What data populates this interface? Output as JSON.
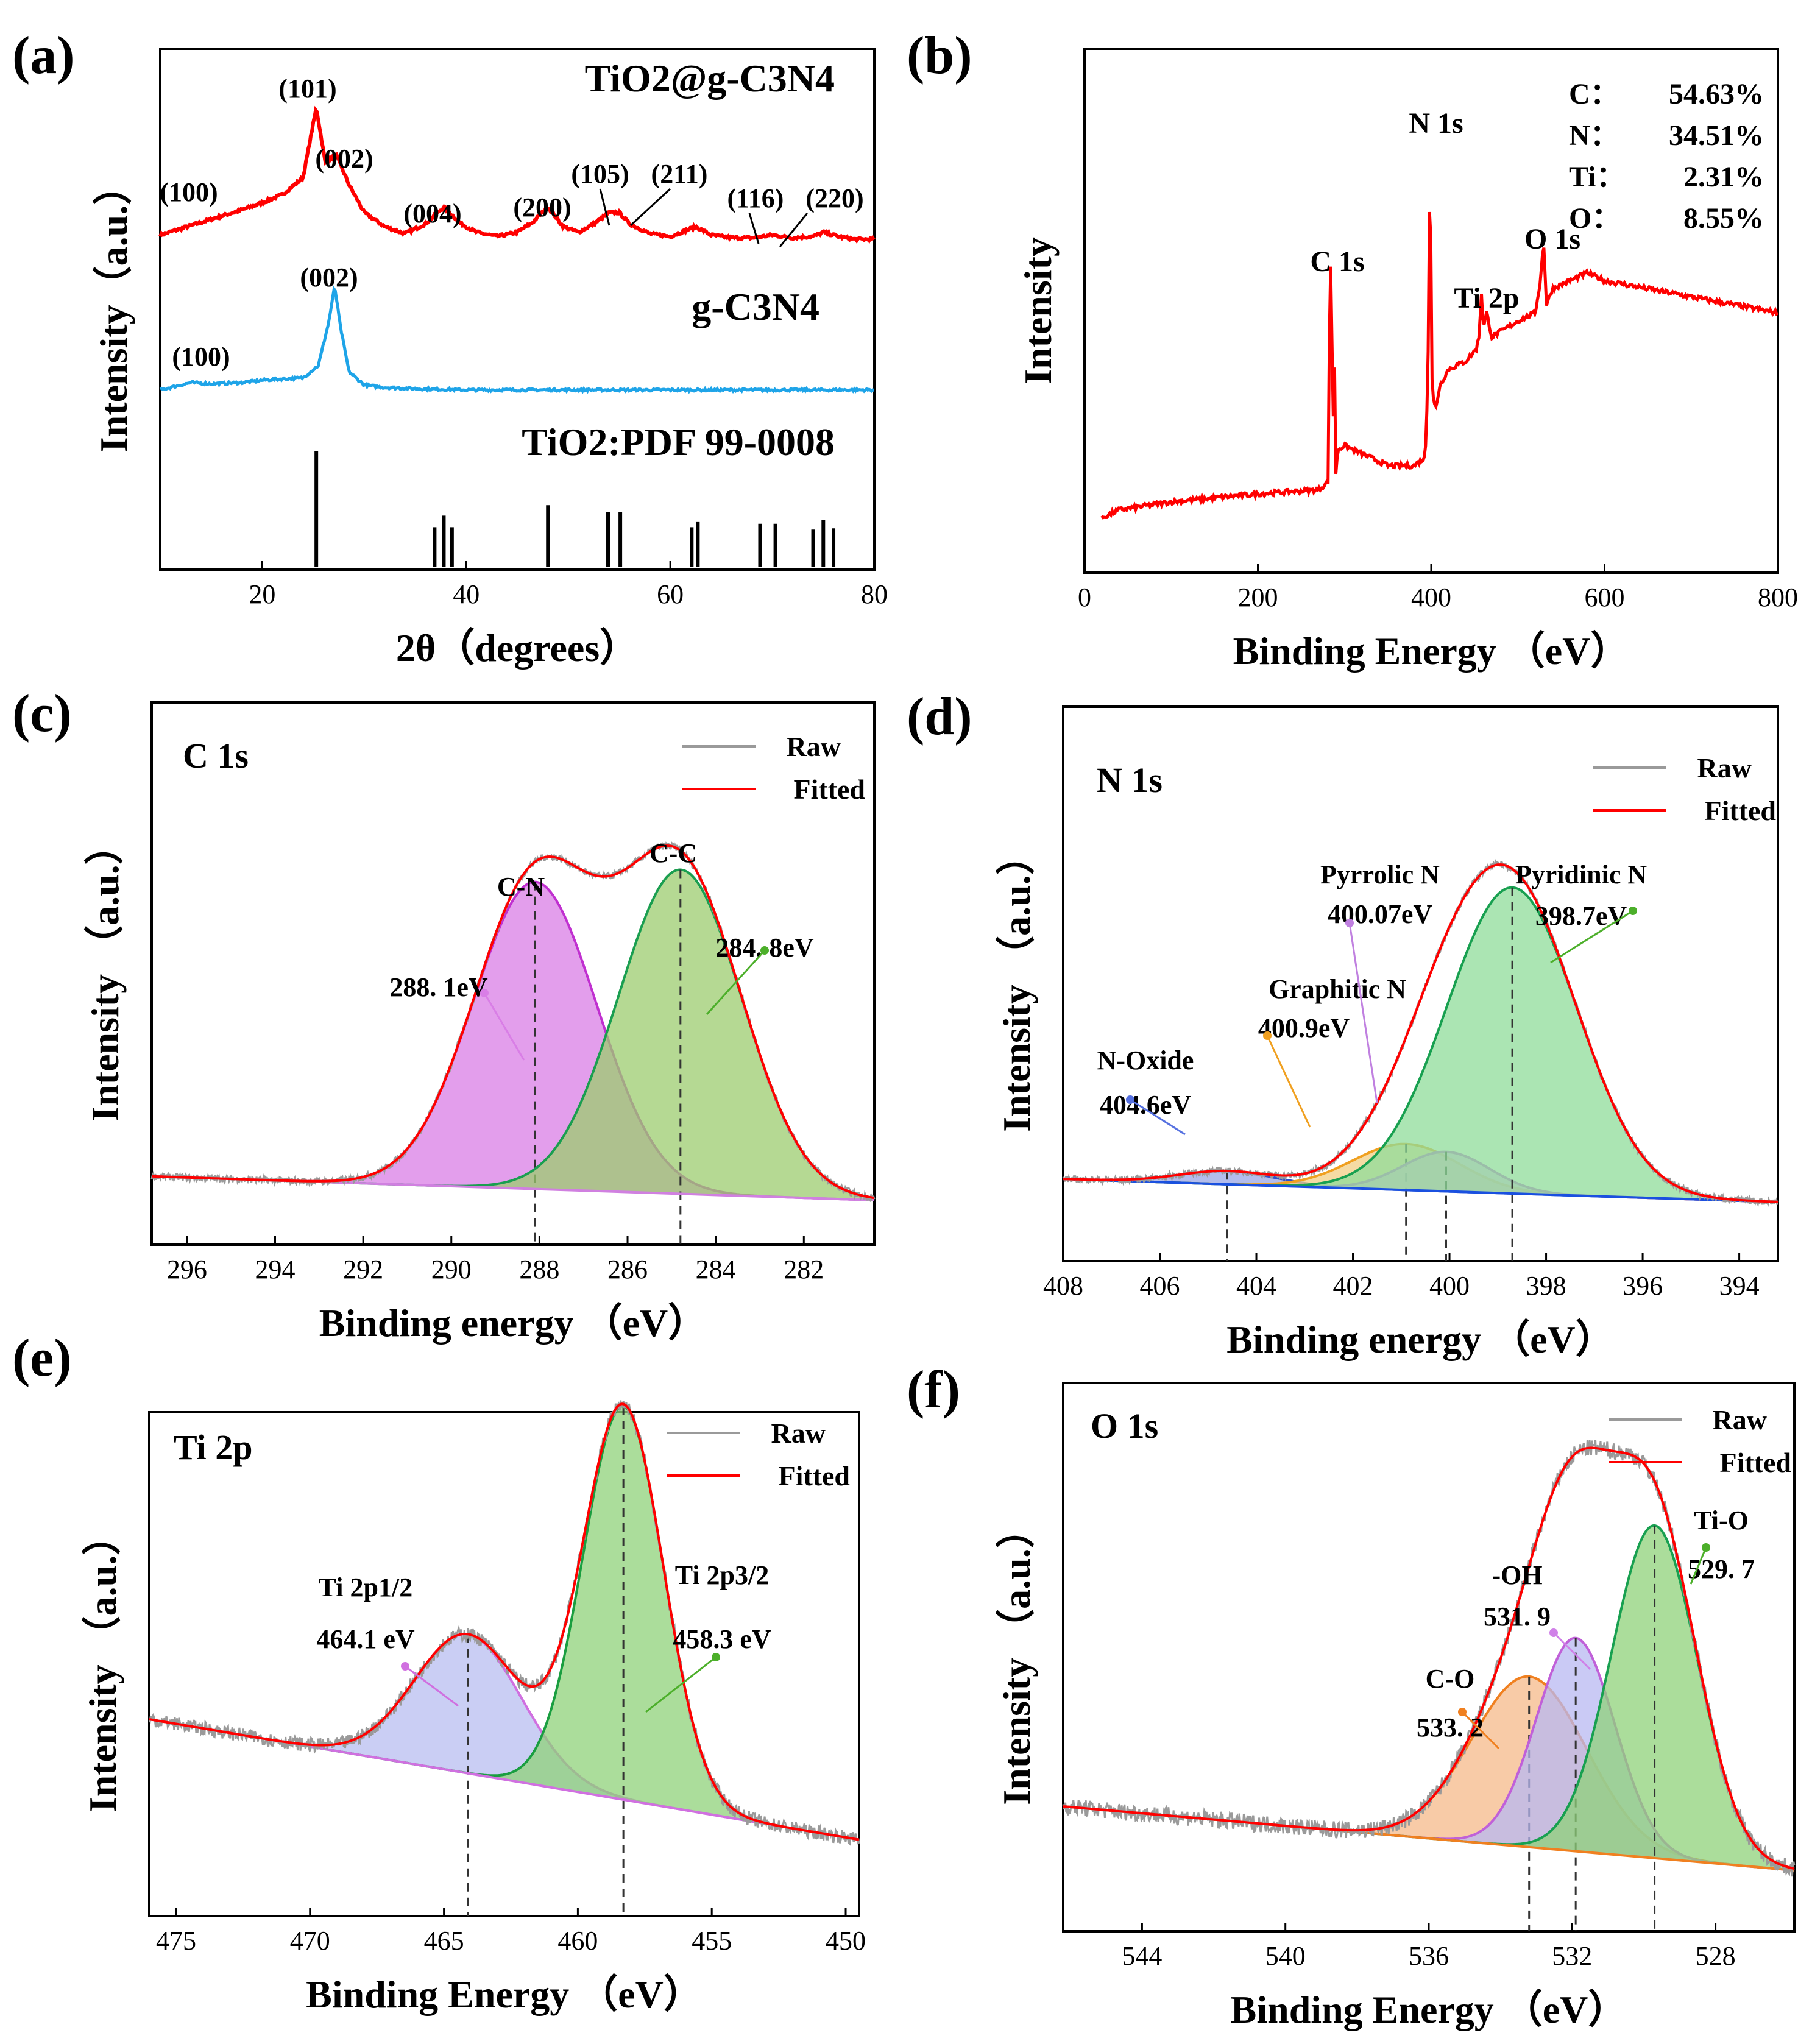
{
  "figure": {
    "panel_labels": [
      "(a)",
      "(b)",
      "(c)",
      "(d)",
      "(e)",
      "(f)"
    ]
  },
  "chart_data": [
    {
      "id": "a",
      "type": "line",
      "title": "",
      "xlabel": "2θ（degrees）",
      "ylabel": "Intensity（a.u.）",
      "xlim": [
        10,
        80
      ],
      "xticks": [
        20,
        40,
        60,
        80
      ],
      "grid": false,
      "series": [
        {
          "name": "TiO2@g-C3N4",
          "color": "#ff0000",
          "x": [
            10,
            14,
            18,
            20,
            22,
            24,
            25.3,
            26.2,
            27.2,
            28.5,
            30,
            32,
            34,
            36,
            37.8,
            39.5,
            41,
            43,
            45,
            46.5,
            48.0,
            49.5,
            51,
            52.5,
            54.0,
            55.0,
            56,
            58,
            60,
            62.5,
            64,
            66,
            68,
            70,
            72,
            74,
            75.0,
            76.5,
            78,
            80
          ],
          "y": [
            0.04,
            0.13,
            0.22,
            0.27,
            0.33,
            0.45,
            0.95,
            0.55,
            0.62,
            0.4,
            0.2,
            0.1,
            0.05,
            0.12,
            0.24,
            0.12,
            0.06,
            0.03,
            0.06,
            0.13,
            0.24,
            0.1,
            0.06,
            0.12,
            0.2,
            0.2,
            0.12,
            0.05,
            0.03,
            0.1,
            0.04,
            0.02,
            0.02,
            0.04,
            0.02,
            0.03,
            0.06,
            0.03,
            0.01,
            0.01
          ]
        },
        {
          "name": "g-C3N4",
          "color": "#1ea4e8",
          "x": [
            10,
            12,
            13,
            15,
            18,
            20,
            22,
            24,
            25.5,
            26.5,
            27.1,
            27.7,
            28.5,
            30,
            32,
            35,
            40,
            50,
            60,
            70,
            80
          ],
          "y": [
            0.0,
            0.04,
            0.06,
            0.05,
            0.06,
            0.08,
            0.09,
            0.1,
            0.2,
            0.55,
            0.85,
            0.5,
            0.15,
            0.04,
            0.02,
            0.01,
            0.0,
            0.0,
            0.0,
            0.0,
            0.0
          ]
        }
      ],
      "reference": {
        "name": "TiO2:PDF 99-0008",
        "x": [
          25.3,
          36.9,
          37.8,
          38.6,
          48.0,
          53.9,
          55.1,
          62.1,
          62.7,
          68.8,
          70.3,
          74.0,
          75.0,
          76.0
        ],
        "y": [
          1.0,
          0.34,
          0.44,
          0.34,
          0.53,
          0.47,
          0.47,
          0.34,
          0.39,
          0.37,
          0.37,
          0.32,
          0.4,
          0.33
        ]
      },
      "curve_labels": [
        "TiO2@g-C3N4",
        "g-C3N4",
        "TiO2:PDF 99-0008"
      ],
      "annotations": [
        {
          "text": "(101)",
          "x": 25.3,
          "color": "#000"
        },
        {
          "text": "(100)",
          "x": 14,
          "color": "#1ea4e8"
        },
        {
          "text": "(002)",
          "x": 28.5,
          "color": "#1ea4e8"
        },
        {
          "text": "(004)",
          "x": 37.8,
          "color": "#000"
        },
        {
          "text": "(200)",
          "x": 48.0,
          "color": "#000"
        },
        {
          "text": "(105)",
          "x": 53.9,
          "color": "#000"
        },
        {
          "text": "(211)",
          "x": 55.1,
          "color": "#000"
        },
        {
          "text": "(116)",
          "x": 68.8,
          "color": "#000"
        },
        {
          "text": "(220)",
          "x": 70.3,
          "color": "#000"
        },
        {
          "text": "(002)",
          "x": 27.1,
          "color": "#000"
        },
        {
          "text": "(100)",
          "x": 13,
          "color": "#000"
        }
      ]
    },
    {
      "id": "b",
      "type": "line",
      "xlabel": "Binding Energy （eV）",
      "ylabel": "Intensity",
      "xlim": [
        0,
        800
      ],
      "xticks": [
        0,
        200,
        400,
        600,
        800
      ],
      "grid": false,
      "series": [
        {
          "name": "survey",
          "color": "#ff0000",
          "x": [
            0,
            20,
            40,
            100,
            200,
            270,
            281,
            283,
            284.8,
            286.5,
            288,
            289.5,
            292,
            300,
            320,
            350,
            380,
            393,
            395,
            397,
            398.7,
            400.5,
            402,
            405,
            410,
            420,
            440,
            452,
            455,
            458.3,
            460,
            464,
            470,
            500,
            520,
            526,
            529.7,
            533,
            540,
            560,
            580,
            600,
            650,
            700,
            750,
            800
          ],
          "y": [
            0.0,
            0.03,
            0.05,
            0.07,
            0.09,
            0.1,
            0.12,
            0.6,
            0.7,
            0.15,
            0.55,
            0.12,
            0.2,
            0.21,
            0.19,
            0.16,
            0.16,
            0.18,
            0.3,
            0.5,
            1.0,
            0.4,
            0.33,
            0.3,
            0.36,
            0.4,
            0.42,
            0.45,
            0.48,
            0.6,
            0.5,
            0.54,
            0.48,
            0.52,
            0.54,
            0.62,
            0.72,
            0.56,
            0.6,
            0.62,
            0.64,
            0.62,
            0.6,
            0.58,
            0.56,
            0.54
          ]
        }
      ],
      "annotations": [
        {
          "text": "C 1s",
          "x": 284.8
        },
        {
          "text": "N 1s",
          "x": 398.7
        },
        {
          "text": "Ti 2p",
          "x": 458.3
        },
        {
          "text": "O 1s",
          "x": 529.7
        }
      ],
      "composition": [
        {
          "element": "C：",
          "value": "54.63%"
        },
        {
          "element": "N：",
          "value": "34.51%"
        },
        {
          "element": "Ti：",
          "value": "2.31%"
        },
        {
          "element": "O：",
          "value": "8.55%"
        }
      ]
    },
    {
      "id": "c",
      "type": "line",
      "title": "C 1s",
      "xlabel": "Binding energy （eV）",
      "ylabel": "Intensity （a.u.）",
      "xlim": [
        296.8,
        280.4
      ],
      "xticks": [
        296,
        294,
        292,
        290,
        288,
        286,
        284,
        282
      ],
      "legend": {
        "position": "top-right",
        "entries": [
          "Raw",
          "Fitted"
        ]
      },
      "baseline": {
        "x": [
          296.8,
          280.4
        ],
        "y": [
          0.07,
          0.0
        ]
      },
      "peaks": [
        {
          "name": "C-N",
          "center": 288.1,
          "height": 0.9,
          "width": 1.4,
          "fill": "#d97ee6",
          "stroke": "#c030d0",
          "label": "C-N",
          "value_label": "288. 1eV",
          "arrow_color": "#d97ee6"
        },
        {
          "name": "C-C",
          "center": 284.8,
          "height": 0.95,
          "width": 1.4,
          "fill": "#9ccc6f",
          "stroke": "#1a9e50",
          "label": "C-C",
          "value_label": "284. 8eV",
          "arrow_color": "#4caf2a"
        }
      ]
    },
    {
      "id": "d",
      "type": "line",
      "title": "N 1s",
      "xlabel": "Binding energy （eV）",
      "ylabel": "Intensity （a.u.）",
      "xlim": [
        408,
        393.2
      ],
      "xticks": [
        408,
        406,
        404,
        402,
        400,
        398,
        396,
        394
      ],
      "legend": {
        "position": "top-right",
        "entries": [
          "Raw",
          "Fitted"
        ]
      },
      "baseline": {
        "x": [
          408,
          393.2
        ],
        "y": [
          0.07,
          0.0
        ]
      },
      "peaks": [
        {
          "name": "N-Oxide",
          "center": 404.6,
          "height": 0.04,
          "width": 1.0,
          "fill": "#9aa6e6",
          "stroke": "#3050c8",
          "label": "N-Oxide",
          "value_label": "404.6eV",
          "arrow_color": "#5570e0"
        },
        {
          "name": "Graphitic N",
          "center": 400.9,
          "height": 0.14,
          "width": 1.1,
          "fill": "#f2cf86",
          "stroke": "#f0a020",
          "label": "Graphitic N",
          "value_label": "400.9eV",
          "arrow_color": "#f0a020"
        },
        {
          "name": "Pyrrolic N",
          "center": 400.07,
          "height": 0.12,
          "width": 0.9,
          "fill": "#e0a8ec",
          "stroke": "#c060d8",
          "label": "Pyrrolic N",
          "value_label": "400.07eV",
          "arrow_color": "#c080e0"
        },
        {
          "name": "Pyridinic N",
          "center": 398.7,
          "height": 0.93,
          "width": 1.35,
          "fill": "#8fdc9a",
          "stroke": "#18a050",
          "label": "Pyridinic N",
          "value_label": "398.7eV",
          "arrow_color": "#4caf2a"
        }
      ]
    },
    {
      "id": "e",
      "type": "line",
      "title": "Ti 2p",
      "xlabel": "Binding Energy （eV）",
      "ylabel": "Intensity （a.u.）",
      "xlim": [
        476,
        449.5
      ],
      "xticks": [
        475,
        470,
        465,
        460,
        455,
        450
      ],
      "legend": {
        "position": "top-right",
        "entries": [
          "Raw",
          "Fitted"
        ]
      },
      "baseline": {
        "x": [
          476,
          449.5
        ],
        "y": [
          0.3,
          0.04
        ]
      },
      "peaks": [
        {
          "name": "Ti 2p1/2",
          "center": 464.1,
          "height": 0.3,
          "width": 2.0,
          "fill": "#b8bdf0",
          "stroke": "#d070e0",
          "label": "Ti 2p1/2",
          "value_label": "464.1 eV",
          "arrow_color": "#d070e0"
        },
        {
          "name": "Ti 2p3/2",
          "center": 458.3,
          "height": 0.85,
          "width": 1.5,
          "fill": "#8fd27a",
          "stroke": "#1a9e40",
          "label": "Ti 2p3/2",
          "value_label": "458.3 eV",
          "arrow_color": "#4caf2a"
        }
      ]
    },
    {
      "id": "f",
      "type": "line",
      "title": "O 1s",
      "xlabel": "Binding Energy （eV）",
      "ylabel": "Intensity （a.u.）",
      "xlim": [
        546.2,
        525.8
      ],
      "xticks": [
        544,
        540,
        536,
        532,
        528
      ],
      "legend": {
        "position": "top-right",
        "entries": [
          "Raw",
          "Fitted"
        ]
      },
      "baseline": {
        "x": [
          546.2,
          525.8
        ],
        "y": [
          0.15,
          0.0
        ]
      },
      "peaks": [
        {
          "name": "C-O",
          "center": 533.2,
          "height": 0.4,
          "width": 1.6,
          "fill": "#f5b98a",
          "stroke": "#f08020",
          "label": "C-O",
          "value_label": "533. 2",
          "arrow_color": "#f08020"
        },
        {
          "name": "-OH",
          "center": 531.9,
          "height": 0.5,
          "width": 1.1,
          "fill": "#b8b8f2",
          "stroke": "#c060d8",
          "label": "-OH",
          "value_label": "531. 9",
          "arrow_color": "#d080e8"
        },
        {
          "name": "Ti-O",
          "center": 529.7,
          "height": 0.78,
          "width": 1.2,
          "fill": "#8fd27a",
          "stroke": "#18a050",
          "label": "Ti-O",
          "value_label": "529. 7",
          "arrow_color": "#4caf2a"
        }
      ]
    }
  ],
  "colors": {
    "raw": "#9a9a9a",
    "fitted": "#ff0000",
    "xrd_red": "#ff0000",
    "xrd_blue": "#1ea4e8",
    "survey": "#ff0000"
  }
}
